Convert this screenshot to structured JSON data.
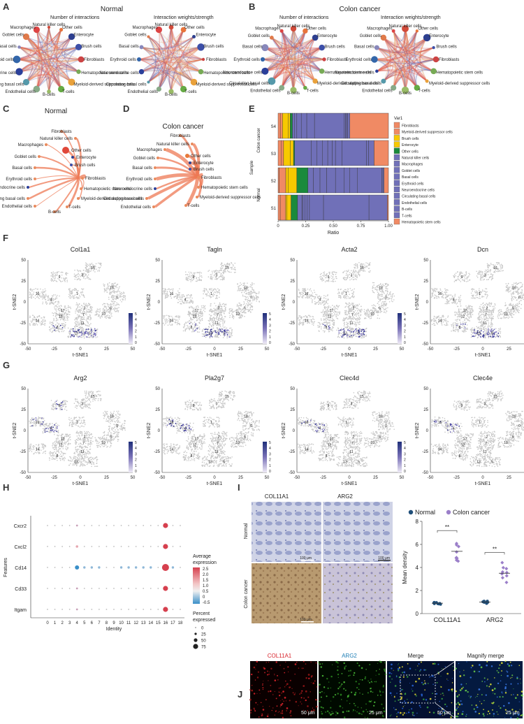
{
  "panels": {
    "A": {
      "label": "A",
      "title": "Normal",
      "sub1": "Number of interactions",
      "sub2": "Interaction weights/strength"
    },
    "B": {
      "label": "B",
      "title": "Colon cancer",
      "sub1": "Number of interactions",
      "sub2": "Interaction weights/strength"
    },
    "C": {
      "label": "C",
      "title": "Normal"
    },
    "D": {
      "label": "D",
      "title": "Colon cancer"
    },
    "E": {
      "label": "E"
    },
    "F": {
      "label": "F"
    },
    "G": {
      "label": "G"
    },
    "H": {
      "label": "H"
    },
    "I": {
      "label": "I"
    },
    "J": {
      "label": "J"
    }
  },
  "cell_types": [
    "Fibroblasts",
    "Myeloid-derived suppressor cells",
    "Brush cells",
    "Enterocyte",
    "Other cells",
    "Natural killer cells",
    "Macrophages",
    "Goblet cells",
    "Basal cells",
    "Erythroid cells",
    "Neuroendocrine cells",
    "Circulating basal cells",
    "Endothelial cells",
    "B-cells",
    "T-cells",
    "Hematopoietic stem cells"
  ],
  "network_labels": {
    "nk": "Natural killer cells",
    "mac": "Macrophages",
    "other": "Other cells",
    "gob": "Goblet cells",
    "ent": "Enterocyte",
    "basal": "Basal cells",
    "brush": "Brush cells",
    "ery": "Erythroid cells",
    "fib": "Fibroblasts",
    "neuro": "Neuroendocrine cells",
    "hsc": "Hematopoietic stem cells",
    "mdsc": "Myeloid-derived suppressor cells",
    "circ": "Circulating basal cells",
    "b": "B-cells",
    "t": "T-cells",
    "endo": "Endothelial cells"
  },
  "chart_data": [
    {
      "type": "bar",
      "panel": "E",
      "orientation": "horizontal-stacked",
      "title": "",
      "xlabel": "Ratio",
      "ylabel": "Sample",
      "xlim": [
        0,
        1
      ],
      "xticks": [
        "0",
        "0.25",
        "0.50",
        "0.75",
        "1.00"
      ],
      "legend_title": "Var1",
      "group_labels": [
        "Colon cancer",
        "Normal"
      ],
      "categories": [
        "S4",
        "S3",
        "S2",
        "S1"
      ],
      "segment_colors": [
        "#f08a64",
        "#f08a64",
        "#f7c900",
        "#f7c900",
        "#1a8a3c",
        "#7070b8",
        "#7070b8",
        "#7070b8",
        "#7070b8",
        "#7070b8",
        "#7070b8",
        "#7070b8",
        "#7070b8",
        "#7070b8",
        "#7070b8",
        "#f08a64"
      ],
      "stacks": [
        [
          0.02,
          0.02,
          0.05,
          0.02,
          0.02,
          0.02,
          0.02,
          0.04,
          0.05,
          0.07,
          0.27,
          0.01,
          0.01,
          0.01,
          0.02,
          0.35
        ],
        [
          0.03,
          0.02,
          0.06,
          0.03,
          0.01,
          0.15,
          0.05,
          0.05,
          0.05,
          0.04,
          0.03,
          0.06,
          0.22,
          0.02,
          0.05,
          0.13
        ],
        [
          0.01,
          0.06,
          0.02,
          0.08,
          0.1,
          0.05,
          0.06,
          0.06,
          0.08,
          0.08,
          0.05,
          0.07,
          0.22,
          0.01,
          0.01,
          0.04
        ],
        [
          0.02,
          0.05,
          0.01,
          0.04,
          0.06,
          0.04,
          0.01,
          0.02,
          0.02,
          0.02,
          0.13,
          0.42,
          0.17,
          0.0,
          0.0,
          0.01
        ]
      ]
    },
    {
      "type": "scatter",
      "panel": "H",
      "title": "",
      "xlabel": "Identity",
      "ylabel": "Features",
      "categories": [
        "0",
        "1",
        "2",
        "3",
        "4",
        "5",
        "6",
        "7",
        "8",
        "9",
        "10",
        "11",
        "12",
        "13",
        "14",
        "15",
        "16",
        "17",
        "18"
      ],
      "features": [
        "Cxcr2",
        "Cxcl2",
        "Cd14",
        "Cd33",
        "Itgam"
      ],
      "avg_expression_legend": {
        "title": "Average expression",
        "ticks": [
          "2.5",
          "2.0",
          "1.5",
          "1.0",
          "0.5",
          "0",
          "-0.5"
        ]
      },
      "percent_legend": {
        "title": "Percent expressed",
        "ticks": [
          "0",
          "25",
          "50",
          "75"
        ]
      },
      "hot_cluster": "16",
      "cd14_cluster4": "blue"
    },
    {
      "type": "scatter",
      "panel": "I",
      "title": "",
      "ylabel": "Mean density",
      "ylim": [
        0,
        8
      ],
      "yticks": [
        "0",
        "2",
        "4",
        "6",
        "8"
      ],
      "categories": [
        "COL11A1",
        "ARG2"
      ],
      "series": [
        {
          "name": "Normal",
          "color": "#1f4e79",
          "means": [
            0.9,
            1.0
          ]
        },
        {
          "name": "Colon cancer",
          "color": "#9b7fc9",
          "means": [
            5.4,
            3.5
          ]
        }
      ],
      "significance": [
        "**",
        "**"
      ]
    }
  ],
  "tsne": {
    "xlabel": "t-SNE1",
    "ylabel": "t-SNE2",
    "xticks": [
      "-50",
      "-25",
      "0",
      "25",
      "50"
    ],
    "yticks": [
      "50",
      "25",
      "0",
      "-25",
      "-50"
    ],
    "scale": [
      "5",
      "4",
      "3",
      "2",
      "1",
      "0"
    ],
    "row_F": [
      "Col1a1",
      "Tagln",
      "Acta2",
      "Dcn"
    ],
    "row_G": [
      "Arg2",
      "Pla2g7",
      "Clec4d",
      "Clec4e"
    ],
    "clusters": [
      "15",
      "3",
      "9",
      "18",
      "1",
      "0",
      "16",
      "4",
      "2",
      "6",
      "17",
      "12",
      "7",
      "10",
      "14",
      "11",
      "8",
      "13",
      "5"
    ]
  },
  "panel_I_images": {
    "col_labels": [
      "COL11A1",
      "ARG2"
    ],
    "row_labels": [
      "Normal",
      "Colon cancer"
    ],
    "scale": "100 μm"
  },
  "panel_J": {
    "labels": [
      "COL11A1",
      "ARG2",
      "Merge",
      "Magnify merge"
    ],
    "scale1": "50 μm",
    "scale2": "25 μm",
    "scale3": "50 μm",
    "scale4": "25 μm"
  }
}
